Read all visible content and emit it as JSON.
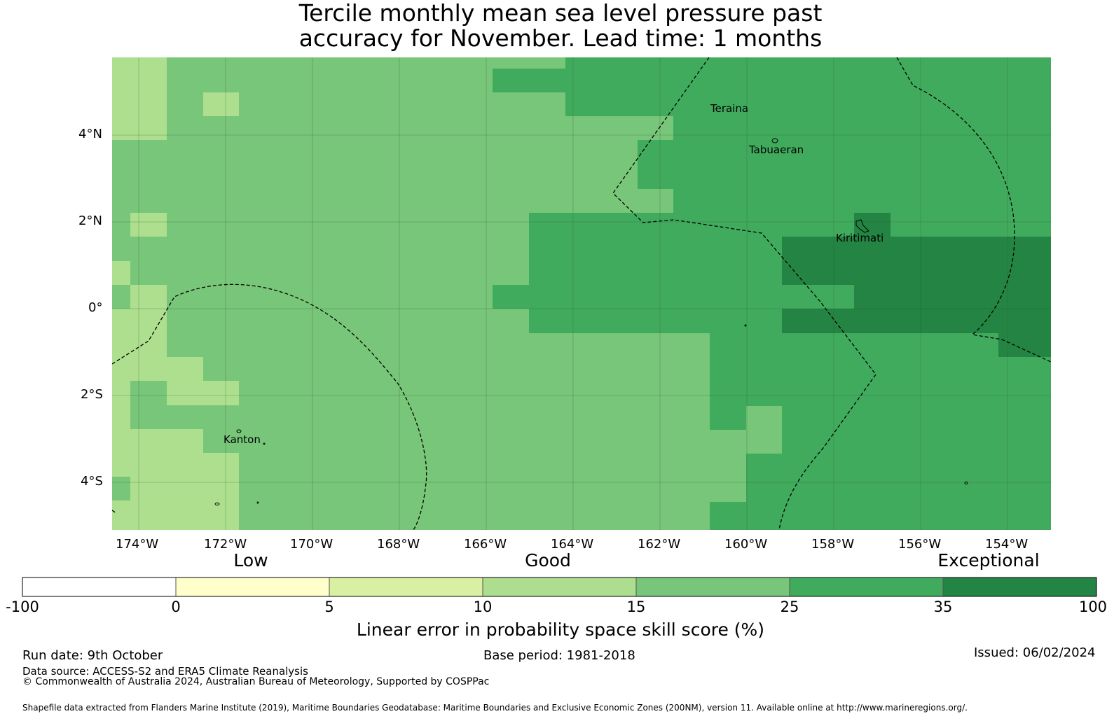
{
  "title_line1": "Tercile monthly mean sea level pressure past",
  "title_line2": "accuracy for November. Lead time: 1 months",
  "map": {
    "lon_ticks": [
      "174°W",
      "172°W",
      "170°W",
      "168°W",
      "166°W",
      "164°W",
      "162°W",
      "160°W",
      "158°W",
      "156°W",
      "154°W"
    ],
    "lat_ticks": [
      "4°N",
      "2°N",
      "0°",
      "2°S",
      "4°S"
    ],
    "places": {
      "teraina": "Teraina",
      "tabuaeran": "Tabuaeran",
      "kiritimati": "Kiritimati",
      "kanton": "Kanton"
    },
    "colors": {
      "c10_15": "#addf8e",
      "c15_25": "#78c679",
      "c25_35": "#41ab5d",
      "c35_100": "#238443"
    }
  },
  "colorbar": {
    "categories": [
      "Low",
      "Good",
      "Exceptional"
    ],
    "ticks": [
      "-100",
      "0",
      "5",
      "10",
      "15",
      "25",
      "35",
      "100"
    ],
    "colors": [
      "#ffffff",
      "#ffffcc",
      "#d9f0a3",
      "#addd8e",
      "#78c679",
      "#41ab5d",
      "#238443"
    ],
    "label": "Linear error in probability space skill score (%)"
  },
  "footer": {
    "run_date": "Run date: 9th October",
    "base_period": "Base period: 1981-2018",
    "issued": "Issued: 06/02/2024",
    "data_source": "Data source: ACCESS-S2 and ERA5 Climate Reanalysis",
    "copyright": "© Commonwealth of Australia 2024, Australian Bureau of Meteorology, Supported by COSPPac",
    "shapefile": "Shapefile data extracted from Flanders Marine Institute (2019), Maritime Boundaries Geodatabase: Maritime Boundaries and Exclusive Economic Zones (200NM), version 11. Available online at http://www.marineregions.org/."
  }
}
